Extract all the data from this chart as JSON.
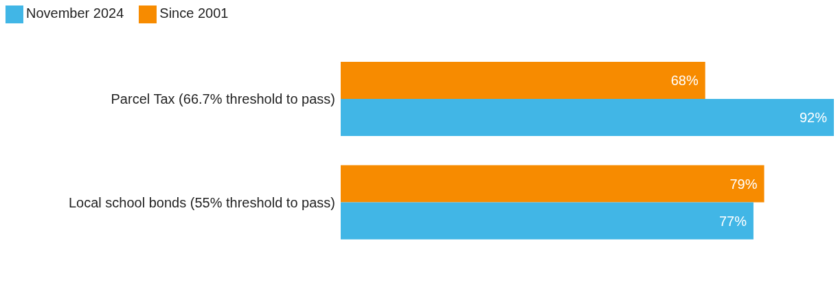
{
  "chart_data": {
    "type": "bar",
    "orientation": "horizontal",
    "categories": [
      "Parcel Tax (66.7% threshold to pass)",
      "Local school bonds (55% threshold to pass)"
    ],
    "series": [
      {
        "name": "Since 2001",
        "color": "#f78b00",
        "values": [
          68,
          79
        ],
        "value_labels": [
          "68%",
          "79%"
        ]
      },
      {
        "name": "November 2024",
        "color": "#41b6e6",
        "values": [
          92,
          77
        ],
        "value_labels": [
          "92%",
          "77%"
        ]
      }
    ],
    "legend": "top left"
  }
}
